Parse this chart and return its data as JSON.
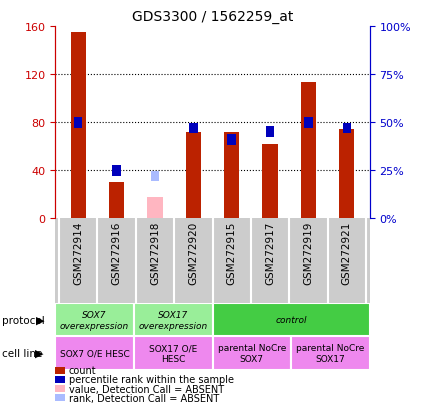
{
  "title": "GDS3300 / 1562259_at",
  "samples": [
    "GSM272914",
    "GSM272916",
    "GSM272918",
    "GSM272920",
    "GSM272915",
    "GSM272917",
    "GSM272919",
    "GSM272921"
  ],
  "count_values": [
    155,
    30,
    null,
    72,
    72,
    62,
    113,
    74
  ],
  "count_absent": [
    null,
    null,
    18,
    null,
    null,
    null,
    null,
    null
  ],
  "percentile_values": [
    50,
    25,
    null,
    47,
    41,
    45,
    50,
    47
  ],
  "percentile_absent": [
    null,
    null,
    22,
    null,
    null,
    null,
    null,
    null
  ],
  "ylim_left": [
    0,
    160
  ],
  "ylim_right": [
    0,
    100
  ],
  "yticks_left": [
    0,
    40,
    80,
    120,
    160
  ],
  "ytick_labels_left": [
    "0",
    "40",
    "80",
    "120",
    "160"
  ],
  "ytick_labels_right": [
    "0%",
    "25%",
    "50%",
    "75%",
    "100%"
  ],
  "protocol_groups": [
    {
      "label": "SOX7\noverexpression",
      "start": 0,
      "end": 2,
      "color": "#99EE99"
    },
    {
      "label": "SOX17\noverexpression",
      "start": 2,
      "end": 4,
      "color": "#99EE99"
    },
    {
      "label": "control",
      "start": 4,
      "end": 8,
      "color": "#44CC44"
    }
  ],
  "cellline_groups": [
    {
      "label": "SOX7 O/E HESC",
      "start": 0,
      "end": 2,
      "color": "#EE88EE"
    },
    {
      "label": "SOX17 O/E\nHESC",
      "start": 2,
      "end": 4,
      "color": "#EE88EE"
    },
    {
      "label": "parental NoCre\nSOX7",
      "start": 4,
      "end": 6,
      "color": "#EE88EE"
    },
    {
      "label": "parental NoCre\nSOX17",
      "start": 6,
      "end": 8,
      "color": "#EE88EE"
    }
  ],
  "bar_width": 0.4,
  "count_color": "#BB2200",
  "count_absent_color": "#FFB6C1",
  "percentile_color": "#0000BB",
  "percentile_absent_color": "#AABBFF",
  "grid_color": "black",
  "left_axis_color": "#CC0000",
  "right_axis_color": "#0000CC",
  "sample_bg_color": "#CCCCCC",
  "legend_items": [
    {
      "color": "#BB2200",
      "label": "count"
    },
    {
      "color": "#0000BB",
      "label": "percentile rank within the sample"
    },
    {
      "color": "#FFB6C1",
      "label": "value, Detection Call = ABSENT"
    },
    {
      "color": "#AABBFF",
      "label": "rank, Detection Call = ABSENT"
    }
  ]
}
